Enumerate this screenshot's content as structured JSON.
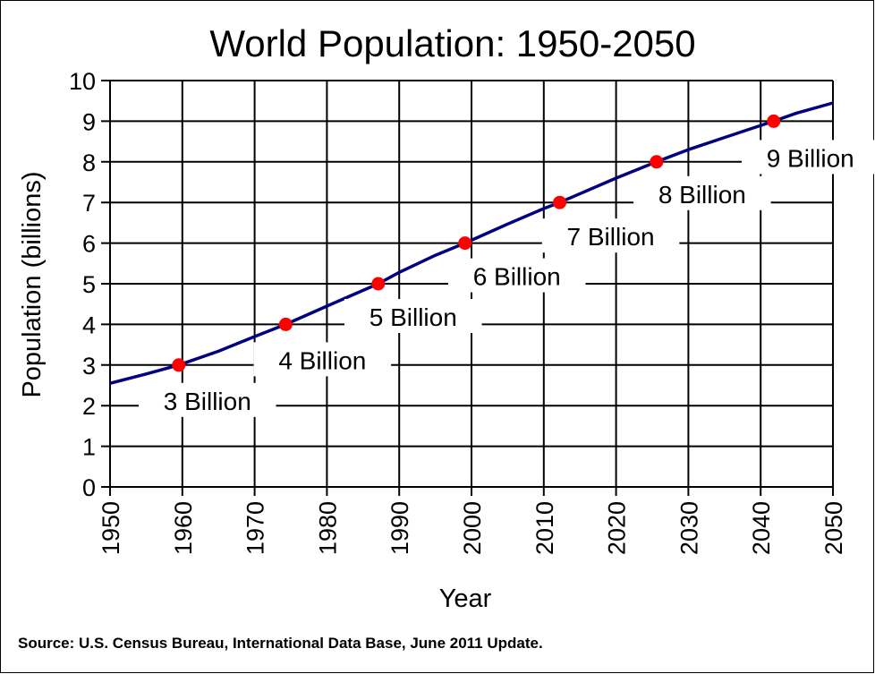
{
  "chart_data": {
    "type": "line",
    "title": "World Population: 1950-2050",
    "xlabel": "Year",
    "ylabel": "Population  (billions)",
    "xlim": [
      1950,
      2050
    ],
    "ylim": [
      0,
      10
    ],
    "grid": true,
    "x_ticks": [
      "1950",
      "1960",
      "1970",
      "1980",
      "1990",
      "2000",
      "2010",
      "2020",
      "2030",
      "2040",
      "2050"
    ],
    "y_ticks": [
      "0",
      "1",
      "2",
      "3",
      "4",
      "5",
      "6",
      "7",
      "8",
      "9",
      "10"
    ],
    "series": [
      {
        "color": "#000080",
        "x": [
          1950,
          1955,
          1959.5,
          1965,
          1970,
          1974.3,
          1980,
          1987.1,
          1990,
          1995,
          1999.1,
          2005,
          2010,
          2012.2,
          2020,
          2025.6,
          2030,
          2035,
          2041.8,
          2045,
          2050
        ],
        "y": [
          2.55,
          2.78,
          3.0,
          3.34,
          3.7,
          4.0,
          4.45,
          5.0,
          5.28,
          5.7,
          6.0,
          6.47,
          6.85,
          7.0,
          7.6,
          8.0,
          8.3,
          8.6,
          9.0,
          9.2,
          9.45
        ]
      }
    ],
    "milestones": [
      {
        "year": 1959.5,
        "value": 3,
        "label": "3 Billion"
      },
      {
        "year": 1974.3,
        "value": 4,
        "label": "4 Billion"
      },
      {
        "year": 1987.1,
        "value": 5,
        "label": "5 Billion"
      },
      {
        "year": 1999.1,
        "value": 6,
        "label": "6 Billion"
      },
      {
        "year": 2012.2,
        "value": 7,
        "label": "7 Billion"
      },
      {
        "year": 2025.6,
        "value": 8,
        "label": "8 Billion"
      },
      {
        "year": 2041.8,
        "value": 9,
        "label": "9 Billion"
      }
    ],
    "milestone_color": "#ff0000",
    "source": "Source: U.S. Census Bureau, International Data Base, June 2011 Update."
  }
}
